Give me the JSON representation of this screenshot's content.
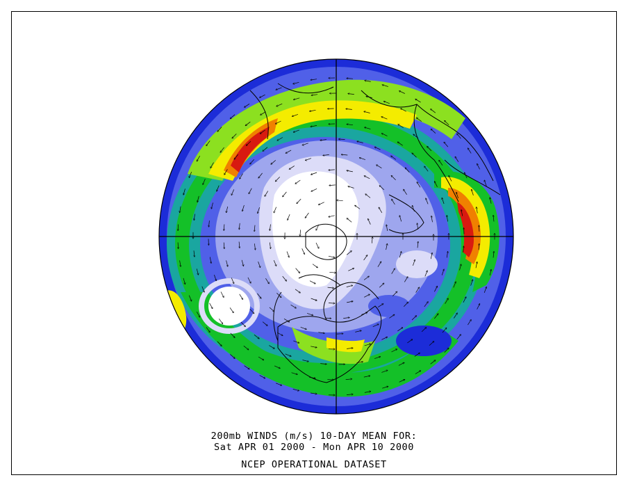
{
  "caption": {
    "line1": "200mb WINDS (m/s)   10-DAY MEAN FOR:",
    "line2": "Sat APR 01 2000 - Mon APR 10 2000",
    "line3": "NCEP OPERATIONAL DATASET"
  },
  "map": {
    "projection": "north polar stereographic",
    "variable": "200mb wind speed",
    "colors": {
      "calm": "#ffffff",
      "very_light": "#dcdcf8",
      "light": "#9ea6ee",
      "blue": "#5060e8",
      "dark_blue": "#1c2cd8",
      "teal": "#1aa6a0",
      "green": "#14c028",
      "light_green": "#8ce020",
      "yellow": "#f4ec00",
      "orange": "#f08000",
      "red": "#d81a10"
    }
  }
}
